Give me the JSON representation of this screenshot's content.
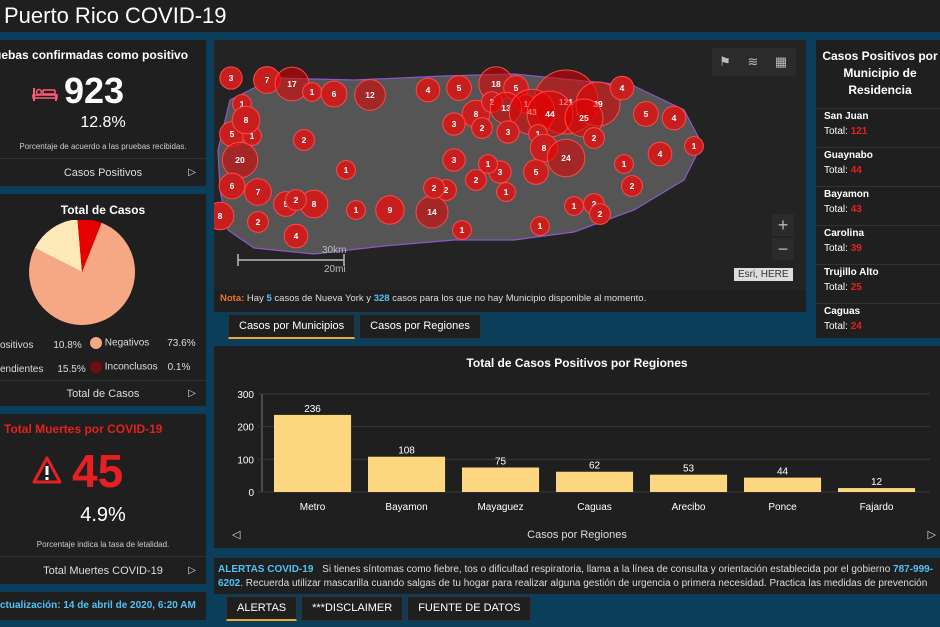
{
  "header": {
    "title": "Puerto Rico COVID-19"
  },
  "positivos_panel": {
    "title": "uebas confirmadas como positivo",
    "count": "923",
    "percent": "12.8%",
    "caption": "Porcentaje de acuerdo a las pruebas recibidas.",
    "footer": "Casos Positivos"
  },
  "total_casos": {
    "title": "Total de Casos",
    "legend": [
      {
        "label": "ositivos",
        "value": "10.8%"
      },
      {
        "label": "Negativos",
        "value": "73.6%"
      },
      {
        "label": "endientes",
        "value": "15.5%"
      },
      {
        "label": "Inconclusos",
        "value": "0.1%"
      }
    ],
    "footer": "Total de Casos",
    "colors": {
      "positivos": "#e60000",
      "negativos": "#f5a883",
      "pendientes": "#fde8b8",
      "inconclusos": "#6b0f0f"
    }
  },
  "muertes": {
    "title": "Total Muertes por COVID-19",
    "count": "45",
    "percent": "4.9%",
    "caption": "Porcentaje indica la tasa de letalidad.",
    "footer": "Total Muertes COVID-19"
  },
  "actualizacion": "ctualización: 14 de abril de 2020, 6:20 AM",
  "map": {
    "note_label": "Nota:",
    "note_pre": "Hay",
    "note_ny": "5",
    "note_mid": "casos de Nueva York y",
    "note_unk": "328",
    "note_post": "casos para los que no hay Municipio disponible al momento.",
    "scale_km": "30km",
    "scale_mi": "20mi",
    "attribution": "Esri, HERE",
    "zoom_in": "+",
    "zoom_out": "−",
    "tabs": [
      "Casos por Municipios",
      "Casos por Regiones"
    ],
    "circles": [
      "3",
      "7",
      "17",
      "1",
      "6",
      "12",
      "1",
      "4",
      "5",
      "8",
      "18",
      "5",
      "1",
      "2",
      "13",
      "121",
      "39",
      "43",
      "44",
      "25",
      "4",
      "5",
      "4",
      "5",
      "1",
      "8",
      "3",
      "2",
      "3",
      "1",
      "2",
      "2",
      "8",
      "24",
      "3",
      "5",
      "3",
      "20",
      "1",
      "2",
      "1",
      "4",
      "1",
      "1",
      "6",
      "2",
      "7",
      "5",
      "8",
      "1",
      "9",
      "14",
      "2",
      "1",
      "1",
      "2",
      "2",
      "2",
      "8",
      "2",
      "4",
      "1",
      "1",
      "2"
    ]
  },
  "municipios": {
    "title": "Casos Positivos por Municipio de Residencia",
    "total_label": "Total:",
    "items": [
      {
        "name": "San Juan",
        "total": "121"
      },
      {
        "name": "Guaynabo",
        "total": "44"
      },
      {
        "name": "Bayamon",
        "total": "43"
      },
      {
        "name": "Carolina",
        "total": "39"
      },
      {
        "name": "Trujillo Alto",
        "total": "25"
      },
      {
        "name": "Caguas",
        "total": "24"
      }
    ]
  },
  "chart_data": {
    "type": "bar",
    "title": "Total de Casos Positivos por Regiones",
    "categories": [
      "Metro",
      "Bayamon",
      "Mayaguez",
      "Caguas",
      "Arecibo",
      "Ponce",
      "Fajardo"
    ],
    "values": [
      236,
      108,
      75,
      62,
      53,
      44,
      12
    ],
    "yticks": [
      "300",
      "200",
      "100",
      "0"
    ],
    "ylim": [
      0,
      300
    ],
    "xlabel": "",
    "ylabel": "",
    "bar_color": "#fdd680",
    "footer": "Casos por Regiones"
  },
  "alertas": {
    "label": "ALERTAS COVID-19",
    "text1": "Si tienes síntomas como fiebre, tos o dificultad respiratoria, llama a la línea de consulta y orientación establecida por el gobierno",
    "phone_a": "787-999-",
    "phone_b": "6202",
    "text2": ". Recuerda utilizar mascarilla cuando salgas de tu hogar para realizar alguna gestión de urgencia o primera necesidad. Practica las medidas de prevención",
    "tabs": [
      "ALERTAS",
      "***DISCLAIMER",
      "FUENTE DE DATOS"
    ]
  }
}
